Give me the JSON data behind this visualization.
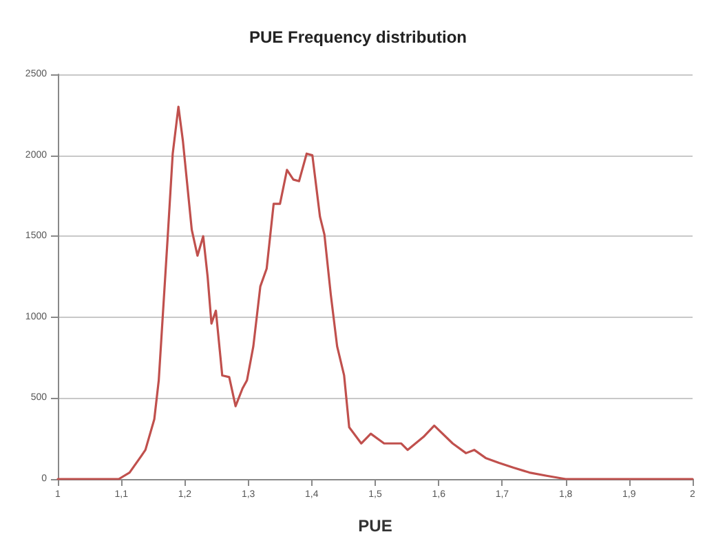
{
  "chart_data": {
    "type": "line",
    "title": "PUE Frequency distribution",
    "xlabel": "PUE",
    "x": [
      1.0,
      1.096,
      1.113,
      1.131,
      1.138,
      1.152,
      1.159,
      1.173,
      1.181,
      1.19,
      1.197,
      1.211,
      1.22,
      1.229,
      1.236,
      1.242,
      1.249,
      1.259,
      1.27,
      1.28,
      1.291,
      1.298,
      1.308,
      1.319,
      1.329,
      1.34,
      1.35,
      1.361,
      1.371,
      1.38,
      1.392,
      1.401,
      1.413,
      1.42,
      1.43,
      1.44,
      1.451,
      1.459,
      1.478,
      1.493,
      1.514,
      1.541,
      1.551,
      1.576,
      1.593,
      1.622,
      1.643,
      1.656,
      1.674,
      1.695,
      1.718,
      1.743,
      1.77,
      1.8,
      2.0
    ],
    "series": [
      {
        "color": "#c0504d",
        "values": [
          0,
          0,
          40,
          140,
          180,
          370,
          610,
          1490,
          2010,
          2300,
          2090,
          1540,
          1380,
          1500,
          1250,
          960,
          1040,
          640,
          630,
          450,
          560,
          610,
          820,
          1190,
          1300,
          1700,
          1700,
          1910,
          1850,
          1840,
          2010,
          2000,
          1620,
          1510,
          1140,
          820,
          640,
          320,
          220,
          280,
          220,
          220,
          180,
          260,
          330,
          220,
          160,
          180,
          130,
          100,
          70,
          40,
          20,
          0,
          0
        ]
      }
    ],
    "xlim": [
      1,
      2
    ],
    "xticks": [
      1,
      {
        "value": 1.1,
        "label": "1,1"
      },
      {
        "value": 1.2,
        "label": "1,2"
      },
      {
        "value": 1.3,
        "label": "1,3"
      },
      {
        "value": 1.4,
        "label": "1,4"
      },
      {
        "value": 1.5,
        "label": "1,5"
      },
      {
        "value": 1.6,
        "label": "1,6"
      },
      {
        "value": 1.7,
        "label": "1,7"
      },
      {
        "value": 1.8,
        "label": "1,8"
      },
      {
        "value": 1.9,
        "label": "1,9"
      },
      2
    ],
    "ylim": [
      0,
      2500
    ],
    "yticks": [
      0,
      500,
      1000,
      1500,
      2000,
      2500
    ],
    "grid": "y",
    "marker": "none",
    "line_style": "solid"
  }
}
